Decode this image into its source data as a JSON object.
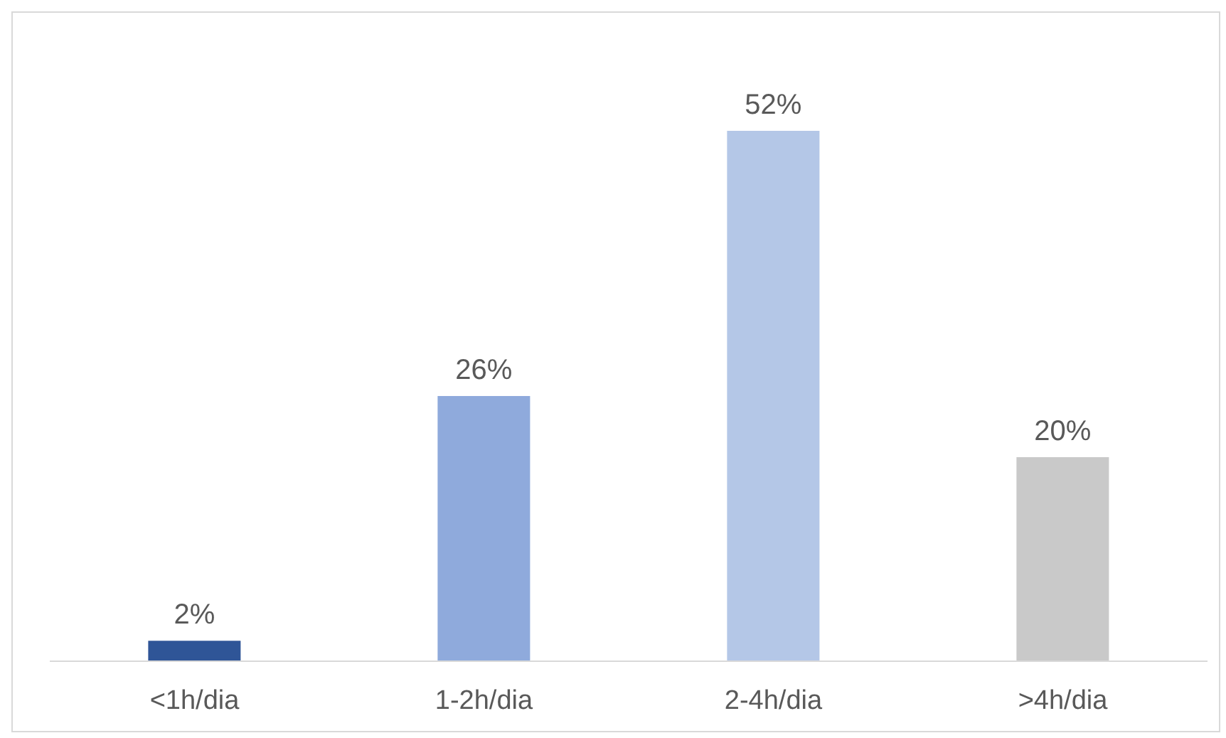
{
  "chart_data": {
    "type": "bar",
    "categories": [
      "<1h/dia",
      "1-2h/dia",
      "2-4h/dia",
      ">4h/dia"
    ],
    "values": [
      2,
      26,
      52,
      20
    ],
    "colors": [
      "#2f5597",
      "#8faadc",
      "#b4c7e7",
      "#c9c9c9"
    ],
    "value_labels": [
      "2%",
      "26%",
      "52%",
      "20%"
    ],
    "grid": false,
    "legend": false
  }
}
